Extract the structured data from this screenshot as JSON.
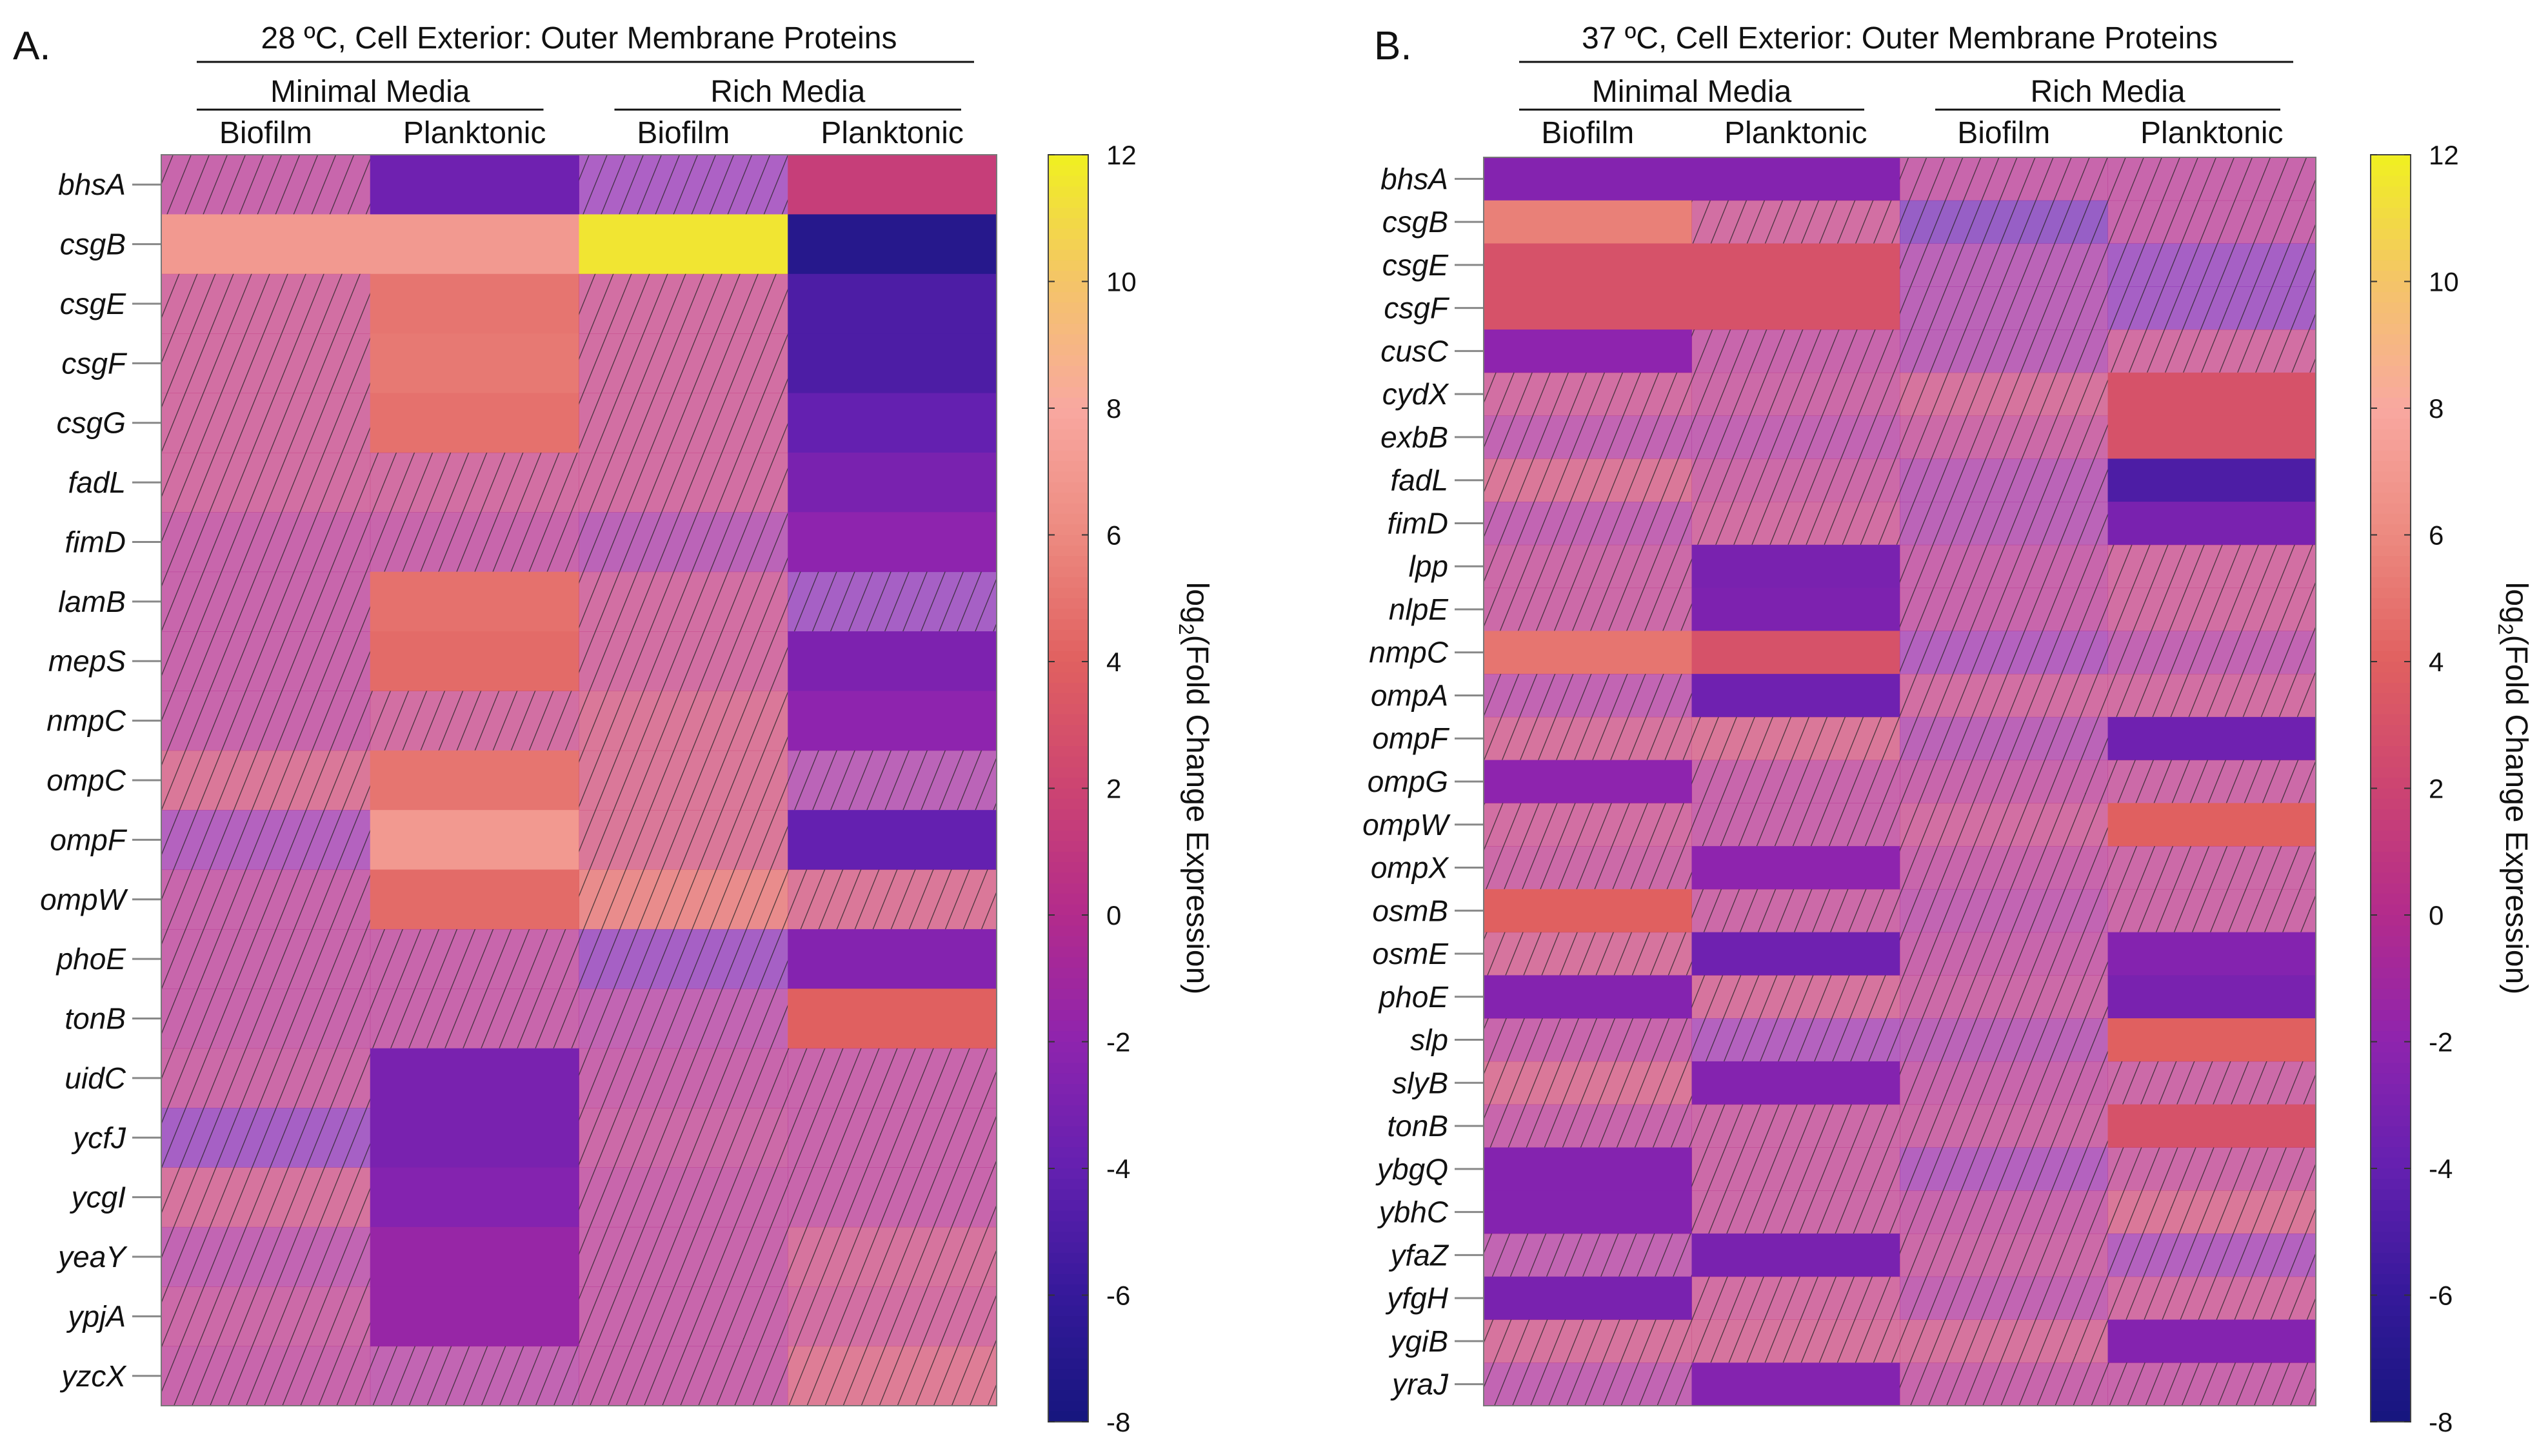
{
  "chart_data": [
    {
      "type": "heatmap",
      "panel_label": "A.",
      "title": "28 ºC, Cell Exterior: Outer Membrane Proteins",
      "groups": [
        {
          "label": "Minimal Media",
          "span": [
            0,
            1
          ]
        },
        {
          "label": "Rich Media",
          "span": [
            2,
            3
          ]
        }
      ],
      "columns": [
        "Biofilm",
        "Planktonic",
        "Biofilm",
        "Planktonic"
      ],
      "rows": [
        "bhsA",
        "csgB",
        "csgE",
        "csgF",
        "csgG",
        "fadL",
        "fimD",
        "lamB",
        "mepS",
        "nmpC",
        "ompC",
        "ompF",
        "ompW",
        "phoE",
        "tonB",
        "uidC",
        "ycfJ",
        "ycgI",
        "yeaY",
        "ypjA",
        "yzcX"
      ],
      "values": [
        [
          0,
          -3.5,
          -2,
          1.5
        ],
        [
          7,
          7,
          11.5,
          -7
        ],
        [
          1,
          5,
          1,
          -5
        ],
        [
          1,
          5.2,
          1,
          -5
        ],
        [
          1,
          4.8,
          1,
          -4
        ],
        [
          1,
          1,
          1,
          -3
        ],
        [
          0,
          0,
          -1,
          -2
        ],
        [
          0,
          4.8,
          1,
          -2.5
        ],
        [
          0,
          4.5,
          1,
          -2.8
        ],
        [
          0,
          1,
          2,
          -2
        ],
        [
          2,
          5,
          2,
          -1
        ],
        [
          -1.5,
          7,
          2,
          -4
        ],
        [
          0,
          4.5,
          4,
          2
        ],
        [
          0,
          0,
          -2.5,
          -2.5
        ],
        [
          0,
          0,
          -0.5,
          4
        ],
        [
          0.5,
          -3,
          0,
          0
        ],
        [
          -2.5,
          -3,
          0.5,
          0
        ],
        [
          1.5,
          -2.5,
          0,
          0
        ],
        [
          -0.5,
          -1.5,
          0,
          1.5
        ],
        [
          0.5,
          -1.5,
          0,
          1
        ],
        [
          0,
          -0.5,
          0,
          2.5
        ]
      ],
      "hatched": [
        [
          1,
          0,
          1,
          0
        ],
        [
          0,
          0,
          0,
          0
        ],
        [
          1,
          0,
          1,
          0
        ],
        [
          1,
          0,
          1,
          0
        ],
        [
          1,
          0,
          1,
          0
        ],
        [
          1,
          1,
          1,
          0
        ],
        [
          1,
          1,
          1,
          0
        ],
        [
          1,
          0,
          1,
          1
        ],
        [
          1,
          0,
          1,
          0
        ],
        [
          1,
          1,
          1,
          0
        ],
        [
          1,
          0,
          1,
          1
        ],
        [
          1,
          0,
          1,
          0
        ],
        [
          1,
          0,
          1,
          1
        ],
        [
          1,
          1,
          1,
          0
        ],
        [
          1,
          1,
          1,
          0
        ],
        [
          1,
          0,
          1,
          1
        ],
        [
          1,
          0,
          1,
          1
        ],
        [
          1,
          0,
          1,
          1
        ],
        [
          1,
          0,
          1,
          1
        ],
        [
          1,
          0,
          1,
          1
        ],
        [
          1,
          1,
          1,
          1
        ]
      ],
      "colorbar": {
        "label_main": "log",
        "label_sub": "2",
        "label_rest": "(Fold Change Expression)",
        "range": [
          -8,
          12
        ],
        "ticks": [
          "12",
          "10",
          "8",
          "6",
          "4",
          "2",
          "0",
          "-2",
          "-4",
          "-6",
          "-8"
        ]
      }
    },
    {
      "type": "heatmap",
      "panel_label": "B.",
      "title": "37 ºC, Cell Exterior: Outer Membrane Proteins",
      "groups": [
        {
          "label": "Minimal Media",
          "span": [
            0,
            1
          ]
        },
        {
          "label": "Rich Media",
          "span": [
            2,
            3
          ]
        }
      ],
      "columns": [
        "Biofilm",
        "Planktonic",
        "Biofilm",
        "Planktonic"
      ],
      "rows": [
        "bhsA",
        "csgB",
        "csgE",
        "csgF",
        "cusC",
        "cydX",
        "exbB",
        "fadL",
        "fimD",
        "lpp",
        "nlpE",
        "nmpC",
        "ompA",
        "ompF",
        "ompG",
        "ompW",
        "ompX",
        "osmB",
        "osmE",
        "phoE",
        "slp",
        "slyB",
        "tonB",
        "ybgQ",
        "ybhC",
        "yfaZ",
        "yfgH",
        "ygiB",
        "yraJ"
      ],
      "values": [
        [
          -2.5,
          -2.5,
          0,
          0
        ],
        [
          5.5,
          1,
          -3.5,
          0
        ],
        [
          3,
          3,
          -1,
          -2.5
        ],
        [
          3,
          3,
          -1,
          -2.5
        ],
        [
          -2,
          0,
          -1,
          1
        ],
        [
          1,
          0.5,
          1.5,
          3
        ],
        [
          -0.5,
          -0.5,
          0.5,
          3
        ],
        [
          2,
          0.5,
          -1,
          -5
        ],
        [
          -0.5,
          1,
          -1,
          -3
        ],
        [
          0.5,
          -3,
          0,
          1
        ],
        [
          0.5,
          -2.8,
          0,
          1
        ],
        [
          5,
          3,
          -1.5,
          -0.5
        ],
        [
          -0.5,
          -3.5,
          1,
          1
        ],
        [
          1.5,
          2,
          -1,
          -3.5
        ],
        [
          -2,
          0,
          0,
          0.5
        ],
        [
          1,
          0,
          1,
          4
        ],
        [
          0.5,
          -2,
          0,
          0.5
        ],
        [
          4,
          0.5,
          -0.5,
          0.5
        ],
        [
          1.5,
          -3.5,
          0,
          -2.5
        ],
        [
          -2.5,
          1.5,
          0.5,
          -3
        ],
        [
          0,
          -1.5,
          -1,
          4
        ],
        [
          2,
          -2.5,
          0,
          0.5
        ],
        [
          0,
          0.5,
          0.5,
          3
        ],
        [
          -2.5,
          0.5,
          -1.5,
          0.5
        ],
        [
          -2.5,
          0.5,
          0,
          2
        ],
        [
          -0.5,
          -3,
          0.5,
          -1.5
        ],
        [
          -3,
          1,
          -0.5,
          1
        ],
        [
          1.5,
          1.5,
          1.5,
          -2.5
        ],
        [
          -0.5,
          -2.5,
          0,
          0
        ]
      ],
      "hatched": [
        [
          0,
          0,
          1,
          1
        ],
        [
          0,
          1,
          1,
          1
        ],
        [
          0,
          0,
          1,
          1
        ],
        [
          0,
          0,
          1,
          1
        ],
        [
          0,
          1,
          1,
          1
        ],
        [
          1,
          1,
          1,
          0
        ],
        [
          1,
          1,
          1,
          0
        ],
        [
          1,
          1,
          1,
          0
        ],
        [
          1,
          1,
          1,
          0
        ],
        [
          1,
          0,
          1,
          1
        ],
        [
          1,
          0,
          1,
          1
        ],
        [
          0,
          0,
          1,
          1
        ],
        [
          1,
          0,
          1,
          1
        ],
        [
          1,
          1,
          1,
          0
        ],
        [
          0,
          1,
          1,
          1
        ],
        [
          1,
          1,
          1,
          0
        ],
        [
          1,
          0,
          1,
          1
        ],
        [
          0,
          1,
          1,
          1
        ],
        [
          1,
          0,
          1,
          0
        ],
        [
          0,
          1,
          1,
          0
        ],
        [
          1,
          1,
          1,
          0
        ],
        [
          1,
          0,
          1,
          1
        ],
        [
          1,
          1,
          1,
          0
        ],
        [
          0,
          1,
          1,
          1
        ],
        [
          0,
          1,
          1,
          1
        ],
        [
          1,
          0,
          1,
          1
        ],
        [
          0,
          1,
          1,
          1
        ],
        [
          1,
          1,
          1,
          0
        ],
        [
          1,
          0,
          1,
          1
        ]
      ],
      "colorbar": {
        "label_main": "log",
        "label_sub": "2",
        "label_rest": "(Fold Change Expression)",
        "range": [
          -8,
          12
        ],
        "ticks": [
          "12",
          "10",
          "8",
          "6",
          "4",
          "2",
          "0",
          "-2",
          "-4",
          "-6",
          "-8"
        ]
      }
    }
  ],
  "colormap": [
    {
      "v": -8,
      "c": "#16167e"
    },
    {
      "v": -6,
      "c": "#35199a"
    },
    {
      "v": -4,
      "c": "#6420b0"
    },
    {
      "v": -2,
      "c": "#8e24ae"
    },
    {
      "v": 0,
      "c": "#b32b8c"
    },
    {
      "v": 2,
      "c": "#cc4472"
    },
    {
      "v": 4,
      "c": "#e06060"
    },
    {
      "v": 6,
      "c": "#ec8a80"
    },
    {
      "v": 8,
      "c": "#f8a8a0"
    },
    {
      "v": 10,
      "c": "#f4c468"
    },
    {
      "v": 12,
      "c": "#f0f020"
    }
  ]
}
